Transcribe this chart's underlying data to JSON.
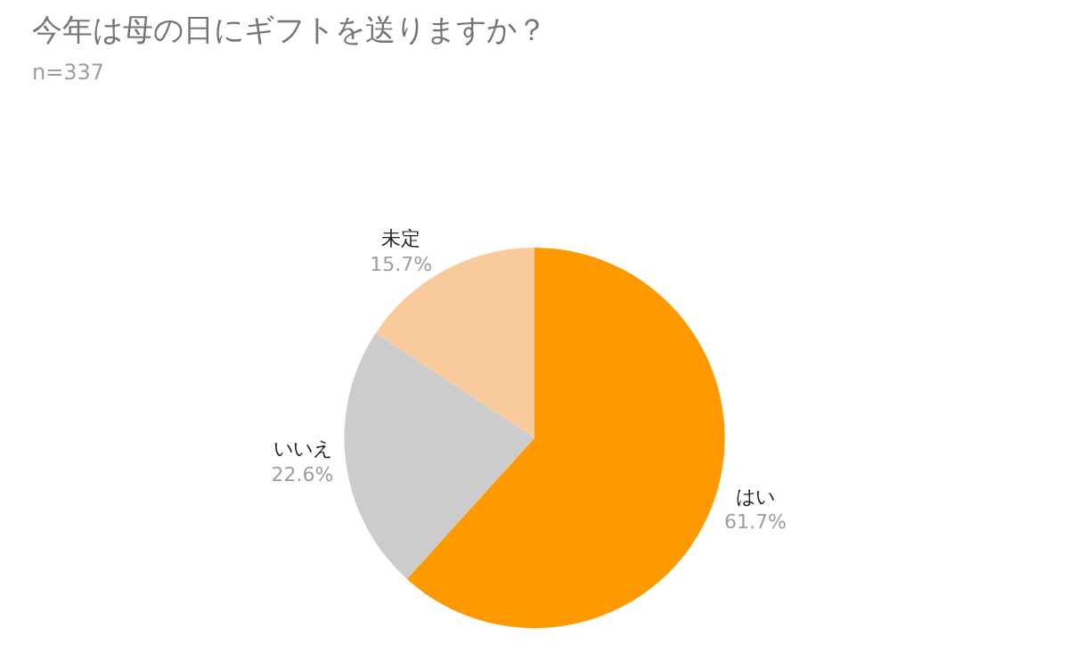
{
  "chart_data": {
    "type": "pie",
    "title": "今年は母の日にギフトを送りますか？",
    "subtitle": "n=337",
    "categories": [
      "はい",
      "いいえ",
      "未定"
    ],
    "values": [
      61.7,
      22.6,
      15.7
    ],
    "value_labels": [
      "61.7%",
      "22.6%",
      "15.7%"
    ],
    "colors": [
      "#ff9900",
      "#cccccc",
      "#f9cb9c"
    ]
  }
}
